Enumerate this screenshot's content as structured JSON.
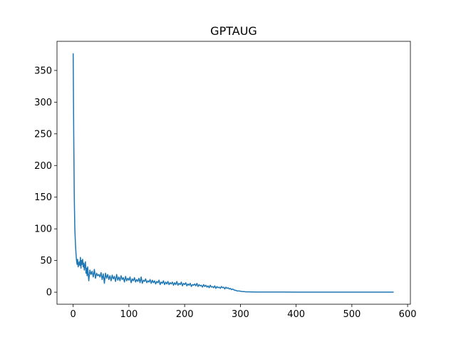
{
  "chart_data": {
    "type": "line",
    "title": "GPTAUG",
    "xlabel": "",
    "ylabel": "",
    "xlim": [
      -29,
      605
    ],
    "ylim": [
      -19,
      396
    ],
    "grid": false,
    "legend": "none",
    "xticks": [
      0,
      100,
      200,
      300,
      400,
      500,
      600
    ],
    "yticks": [
      0,
      50,
      100,
      150,
      200,
      250,
      300,
      350
    ],
    "series": [
      {
        "color": "#1f77b4",
        "x": [
          0,
          1,
          2,
          3,
          4,
          5,
          6,
          7,
          8,
          9,
          10,
          11,
          12,
          13,
          14,
          15,
          16,
          17,
          18,
          19,
          20,
          21,
          22,
          23,
          24,
          25,
          26,
          28,
          30,
          32,
          34,
          36,
          38,
          40,
          42,
          44,
          46,
          48,
          50,
          52,
          54,
          56,
          58,
          60,
          62,
          64,
          66,
          68,
          70,
          72,
          74,
          76,
          78,
          80,
          82,
          84,
          86,
          88,
          90,
          92,
          94,
          96,
          98,
          100,
          102,
          104,
          106,
          108,
          110,
          112,
          114,
          116,
          118,
          120,
          122,
          124,
          126,
          128,
          130,
          132,
          134,
          136,
          138,
          140,
          142,
          144,
          146,
          148,
          150,
          152,
          154,
          156,
          158,
          160,
          162,
          164,
          166,
          168,
          170,
          172,
          174,
          176,
          178,
          180,
          182,
          184,
          186,
          188,
          190,
          192,
          194,
          196,
          198,
          200,
          202,
          204,
          206,
          208,
          210,
          212,
          214,
          216,
          218,
          220,
          222,
          224,
          226,
          228,
          230,
          232,
          234,
          236,
          238,
          240,
          242,
          244,
          246,
          248,
          250,
          252,
          254,
          256,
          258,
          260,
          262,
          264,
          266,
          268,
          270,
          272,
          274,
          276,
          278,
          280,
          282,
          284,
          286,
          288,
          290,
          292,
          294,
          296,
          298,
          300,
          302,
          304,
          306,
          308,
          310,
          315,
          320,
          330,
          340,
          350,
          375,
          400,
          425,
          450,
          475,
          500,
          525,
          550,
          575
        ],
        "y": [
          377,
          250,
          150,
          100,
          78,
          62,
          50,
          44,
          52,
          40,
          45,
          48,
          42,
          55,
          38,
          50,
          44,
          52,
          40,
          46,
          35,
          42,
          48,
          30,
          38,
          26,
          40,
          18,
          35,
          28,
          33,
          24,
          36,
          22,
          30,
          26,
          28,
          24,
          31,
          20,
          29,
          14,
          30,
          22,
          28,
          20,
          26,
          18,
          27,
          21,
          25,
          17,
          28,
          19,
          24,
          18,
          26,
          20,
          23,
          16,
          25,
          18,
          22,
          19,
          24,
          15,
          21,
          18,
          23,
          16,
          20,
          17,
          22,
          15,
          24,
          14,
          19,
          17,
          21,
          15,
          18,
          16,
          20,
          14,
          19,
          15,
          18,
          13,
          17,
          15,
          19,
          12,
          16,
          14,
          18,
          12,
          16,
          13,
          17,
          12,
          15,
          13,
          16,
          11,
          15,
          12,
          17,
          11,
          14,
          12,
          16,
          10,
          14,
          12,
          15,
          10,
          13,
          11,
          14,
          9,
          12,
          11,
          13,
          10,
          14,
          9,
          12,
          10,
          11,
          8,
          12,
          9,
          11,
          8,
          10,
          7,
          11,
          8,
          9,
          7,
          10,
          6,
          9,
          7,
          8,
          6,
          9,
          7,
          8,
          5,
          8,
          6,
          7,
          5,
          6,
          4,
          5,
          4,
          3,
          3,
          2,
          2,
          2,
          1.5,
          1.2,
          1.0,
          1.0,
          0.8,
          0.6,
          0.5,
          0.4,
          0.3,
          0.3,
          0.2,
          0.2,
          0.1,
          0.1,
          0.1,
          0.1,
          0.1,
          0.1,
          0.1,
          0.1
        ]
      }
    ]
  }
}
